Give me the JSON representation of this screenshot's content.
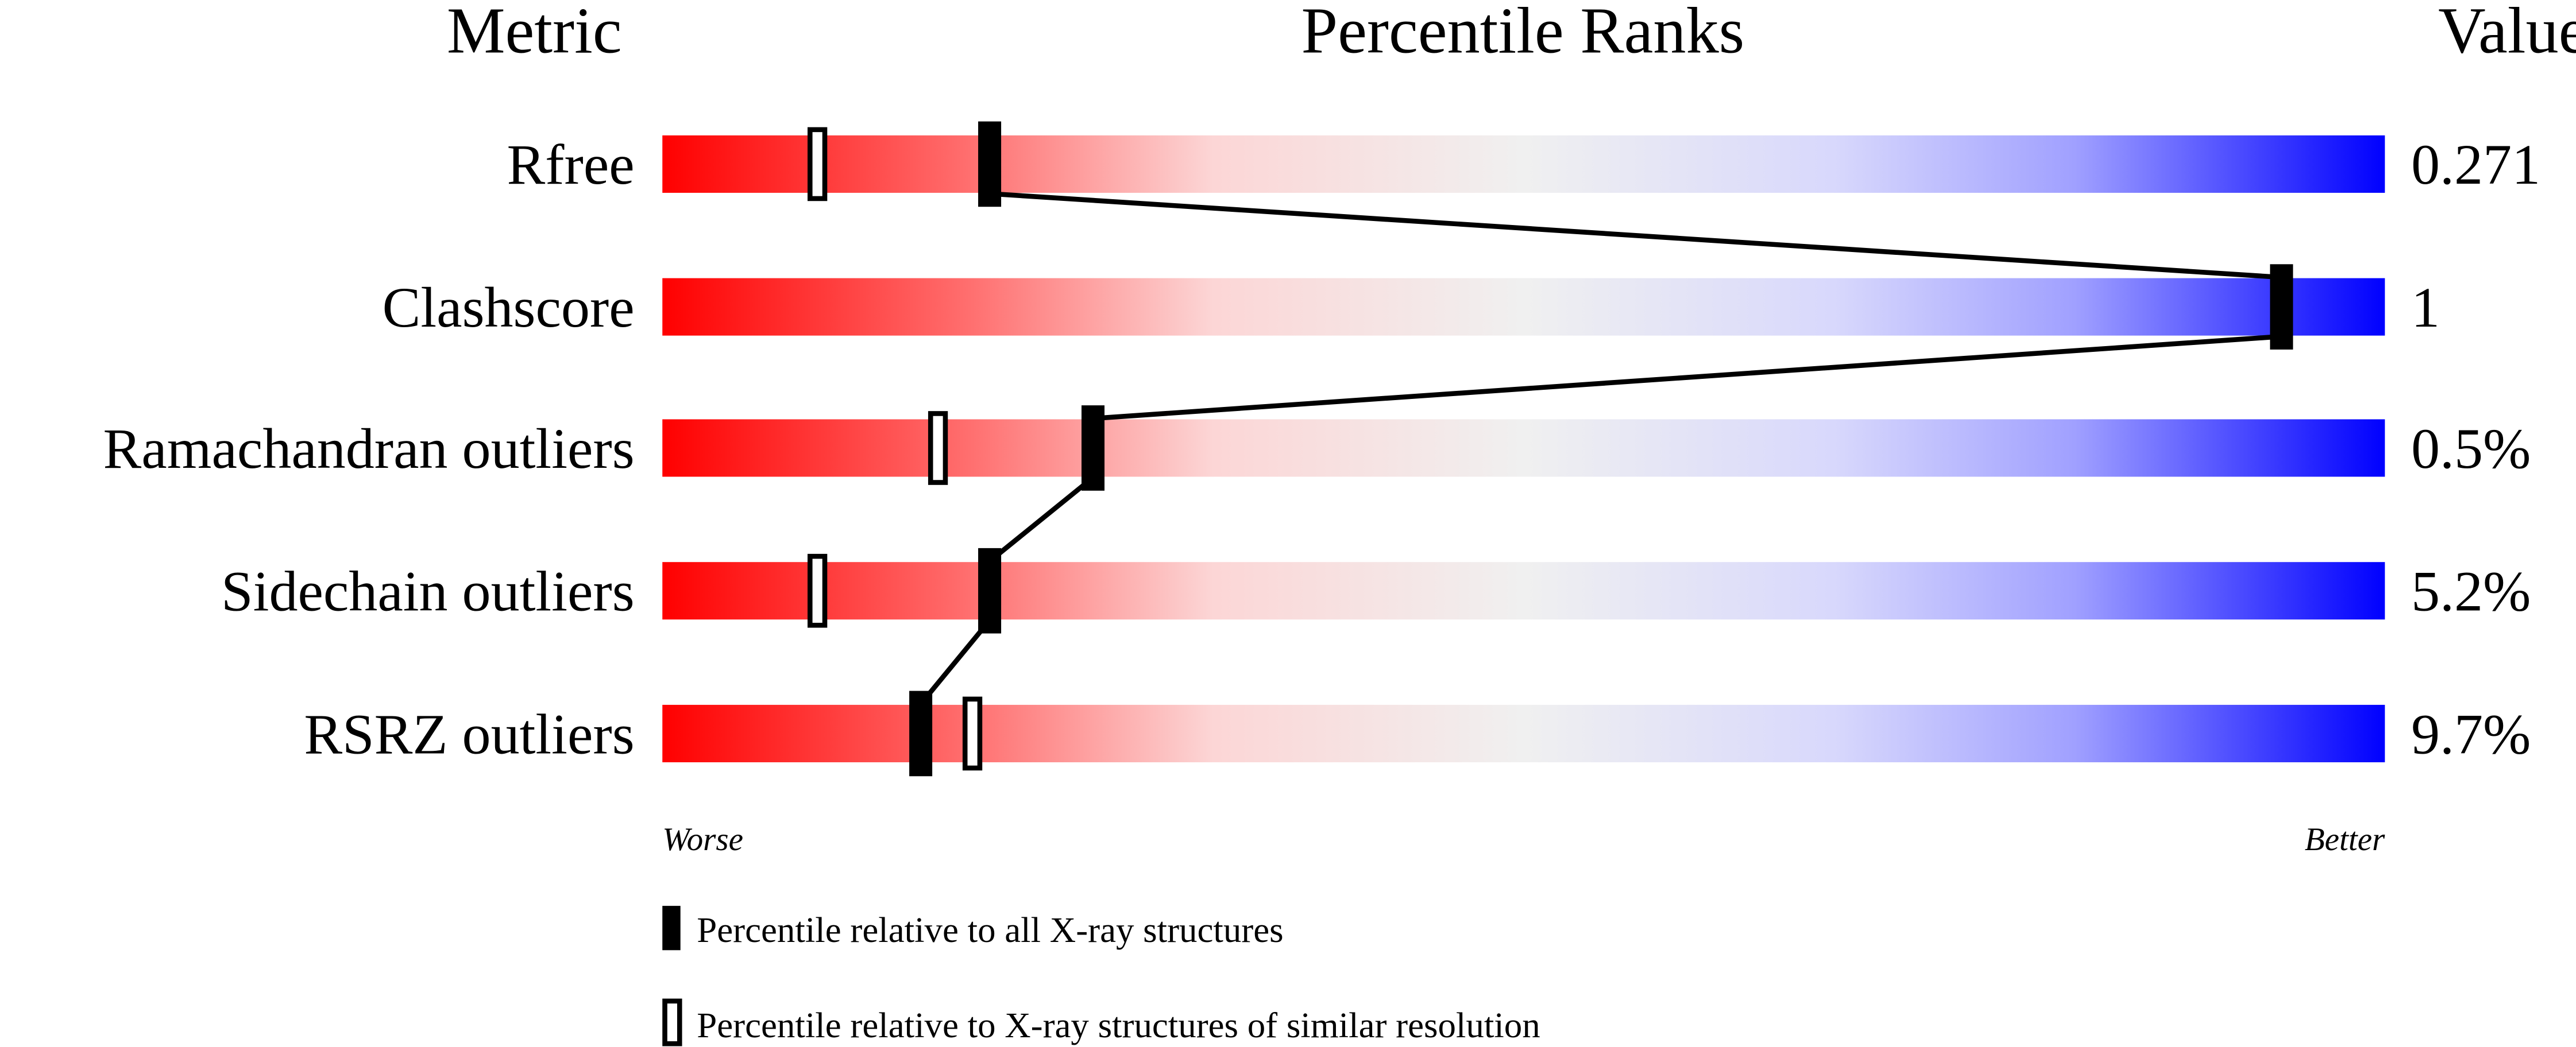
{
  "chart_data": {
    "type": "percentile-slider",
    "headers": {
      "metric": "Metric",
      "ranks": "Percentile Ranks",
      "value": "Value"
    },
    "axis": {
      "min": 0,
      "max": 100,
      "left_label": "Worse",
      "right_label": "Better"
    },
    "gradient_colors": [
      "#ff0000",
      "#f0f0f0",
      "#0000ff"
    ],
    "metrics": [
      {
        "name": "Rfree",
        "value": "0.271",
        "percentile_all": 19,
        "percentile_similar": 9
      },
      {
        "name": "Clashscore",
        "value": "1",
        "percentile_all": 94,
        "percentile_similar": null
      },
      {
        "name": "Ramachandran outliers",
        "value": "0.5%",
        "percentile_all": 25,
        "percentile_similar": 16
      },
      {
        "name": "Sidechain outliers",
        "value": "5.2%",
        "percentile_all": 19,
        "percentile_similar": 9
      },
      {
        "name": "RSRZ outliers",
        "value": "9.7%",
        "percentile_all": 15,
        "percentile_similar": 18
      }
    ],
    "legend": [
      {
        "marker": "filled",
        "label": "Percentile relative to all X-ray structures"
      },
      {
        "marker": "open",
        "label": "Percentile relative to X-ray structures of similar resolution"
      }
    ]
  }
}
